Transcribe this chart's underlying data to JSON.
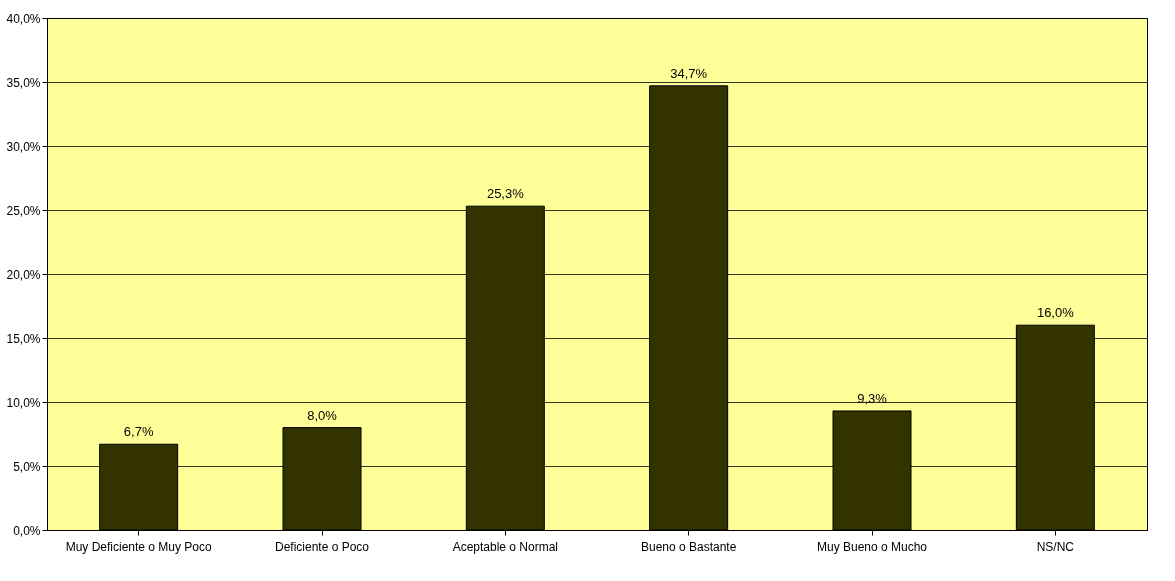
{
  "chart_data": {
    "type": "bar",
    "categories": [
      "Muy Deficiente o Muy Poco",
      "Deficiente o Poco",
      "Aceptable o Normal",
      "Bueno o Bastante",
      "Muy Bueno o Mucho",
      "NS/NC"
    ],
    "values": [
      6.7,
      8.0,
      25.3,
      34.7,
      9.3,
      16.0
    ],
    "value_labels": [
      "6,7%",
      "8,0%",
      "25,3%",
      "34,7%",
      "9,3%",
      "16,0%"
    ],
    "color": "#333300",
    "ylim": [
      0,
      40
    ],
    "yticks": [
      {
        "value": 0,
        "label": "0,0%"
      },
      {
        "value": 5,
        "label": "5,0%"
      },
      {
        "value": 10,
        "label": "10,0%"
      },
      {
        "value": 15,
        "label": "15,0%"
      },
      {
        "value": 20,
        "label": "20,0%"
      },
      {
        "value": 25,
        "label": "25,0%"
      },
      {
        "value": 30,
        "label": "30,0%"
      },
      {
        "value": 35,
        "label": "35,0%"
      },
      {
        "value": 40,
        "label": "40,0%"
      }
    ],
    "grid": "y"
  }
}
